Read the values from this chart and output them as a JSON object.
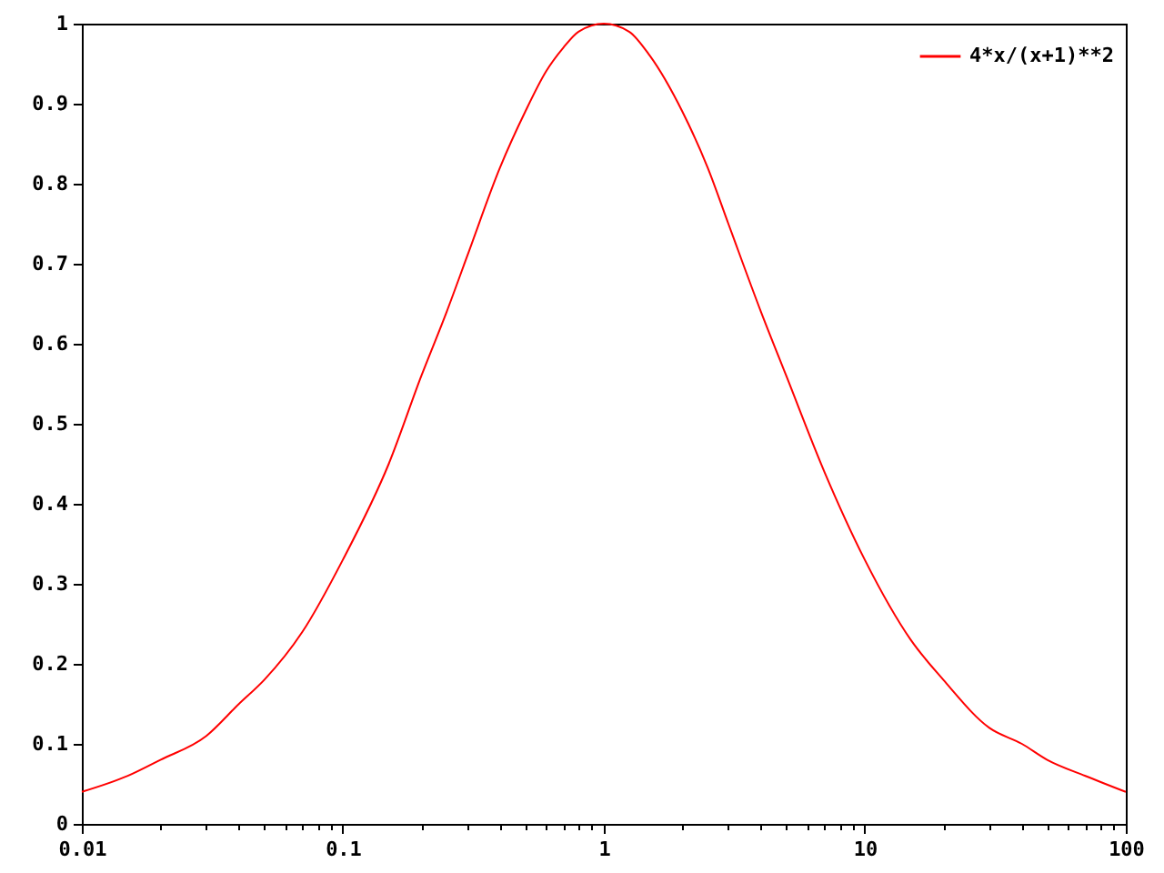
{
  "chart_data": {
    "type": "line",
    "x": [
      0.01,
      0.015,
      0.02,
      0.03,
      0.04,
      0.05,
      0.07,
      0.1,
      0.15,
      0.2,
      0.25,
      0.3,
      0.4,
      0.5,
      0.6,
      0.7,
      0.8,
      1,
      1.25,
      1.5,
      2,
      2.5,
      3,
      4,
      5,
      7,
      10,
      15,
      20,
      30,
      40,
      50,
      70,
      100
    ],
    "series": [
      {
        "name": "4*x/(x+1)**2",
        "color": "#ff0000",
        "values": [
          0.04,
          0.06,
          0.08,
          0.11,
          0.15,
          0.18,
          0.24,
          0.33,
          0.45,
          0.56,
          0.64,
          0.71,
          0.82,
          0.89,
          0.94,
          0.97,
          0.99,
          1,
          0.99,
          0.96,
          0.89,
          0.82,
          0.75,
          0.64,
          0.56,
          0.44,
          0.33,
          0.23,
          0.18,
          0.12,
          0.1,
          0.08,
          0.06,
          0.04
        ]
      }
    ],
    "xlim": [
      0.01,
      100
    ],
    "ylim": [
      0,
      1
    ],
    "xticks": [
      0.01,
      {
        "value": 0.02,
        "label": null
      },
      {
        "value": 0.03,
        "label": null
      },
      {
        "value": 0.04,
        "label": null
      },
      {
        "value": 0.05,
        "label": null
      },
      {
        "value": 0.06,
        "label": null
      },
      {
        "value": 0.07,
        "label": null
      },
      {
        "value": 0.08,
        "label": null
      },
      {
        "value": 0.09,
        "label": null
      },
      0.1,
      {
        "value": 0.2,
        "label": null
      },
      {
        "value": 0.3,
        "label": null
      },
      {
        "value": 0.4,
        "label": null
      },
      {
        "value": 0.5,
        "label": null
      },
      {
        "value": 0.6,
        "label": null
      },
      {
        "value": 0.7,
        "label": null
      },
      {
        "value": 0.8,
        "label": null
      },
      {
        "value": 0.9,
        "label": null
      },
      1,
      {
        "value": 2,
        "label": null
      },
      {
        "value": 3,
        "label": null
      },
      {
        "value": 4,
        "label": null
      },
      {
        "value": 5,
        "label": null
      },
      {
        "value": 6,
        "label": null
      },
      {
        "value": 7,
        "label": null
      },
      {
        "value": 8,
        "label": null
      },
      {
        "value": 9,
        "label": null
      },
      10,
      {
        "value": 20,
        "label": null
      },
      {
        "value": 30,
        "label": null
      },
      {
        "value": 40,
        "label": null
      },
      {
        "value": 50,
        "label": null
      },
      {
        "value": 60,
        "label": null
      },
      {
        "value": 70,
        "label": null
      },
      {
        "value": 80,
        "label": null
      },
      {
        "value": 90,
        "label": null
      },
      100
    ],
    "yticks": [
      0,
      0.1,
      0.2,
      0.3,
      0.4,
      0.5,
      0.6,
      0.7,
      0.8,
      0.9,
      1
    ],
    "log": "x",
    "legend": "top right",
    "line_style": "solid"
  }
}
